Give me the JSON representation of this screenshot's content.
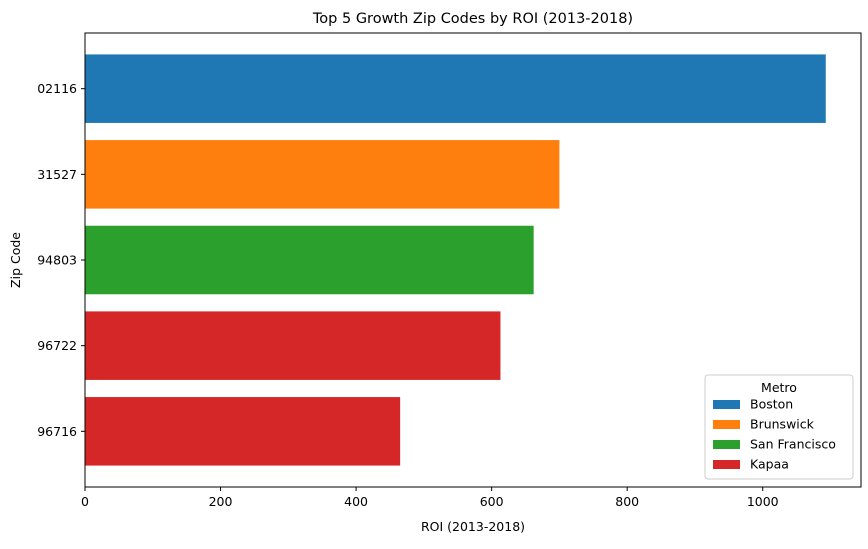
{
  "chart_data": {
    "type": "bar",
    "orientation": "horizontal",
    "title": "Top 5 Growth Zip Codes by ROI (2013-2018)",
    "xlabel": "ROI (2013-2018)",
    "ylabel": "Zip Code",
    "xlim": [
      0,
      1145
    ],
    "xticks": [
      0,
      200,
      400,
      600,
      800,
      1000
    ],
    "grid": false,
    "bars": [
      {
        "category": "02116",
        "value": 1093,
        "metro": "Boston"
      },
      {
        "category": "31527",
        "value": 700,
        "metro": "Brunswick"
      },
      {
        "category": "94803",
        "value": 662,
        "metro": "San Francisco"
      },
      {
        "category": "96722",
        "value": 613,
        "metro": "Kapaa"
      },
      {
        "category": "96716",
        "value": 465,
        "metro": "Kapaa"
      }
    ],
    "legend": {
      "title": "Metro",
      "placement": "lower-right",
      "entries": [
        {
          "name": "Boston",
          "color": "#1f77b4"
        },
        {
          "name": "Brunswick",
          "color": "#ff7f0e"
        },
        {
          "name": "San Francisco",
          "color": "#2ca02c"
        },
        {
          "name": "Kapaa",
          "color": "#d62728"
        }
      ]
    }
  }
}
